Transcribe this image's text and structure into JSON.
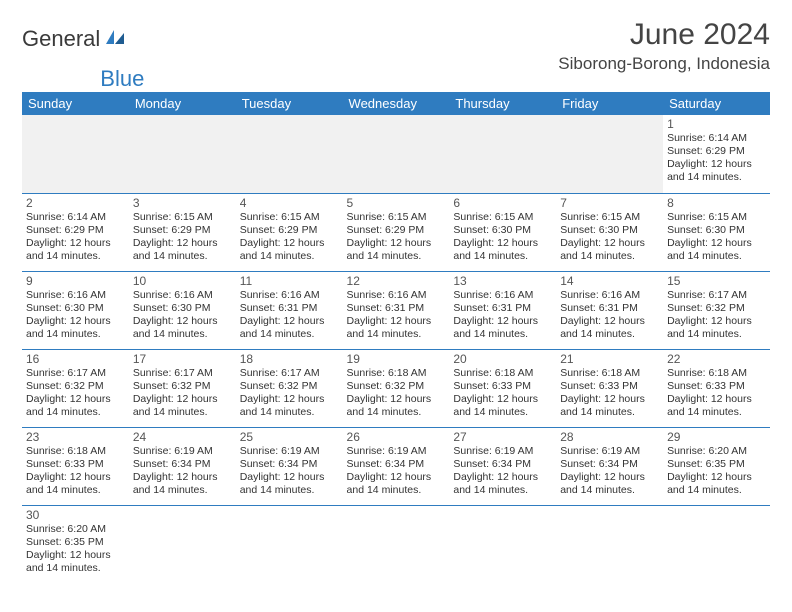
{
  "brand": {
    "part1": "General",
    "part2": "Blue"
  },
  "title": "June 2024",
  "location": "Siborong-Borong, Indonesia",
  "colors": {
    "header_bg": "#2f7cc0",
    "header_text": "#ffffff",
    "row_divider": "#2f7cc0",
    "blank_bg": "#f1f1f1",
    "text": "#333333"
  },
  "weekdays": [
    "Sunday",
    "Monday",
    "Tuesday",
    "Wednesday",
    "Thursday",
    "Friday",
    "Saturday"
  ],
  "daylight_text": "Daylight: 12 hours and 14 minutes.",
  "days": {
    "1": {
      "sunrise": "6:14 AM",
      "sunset": "6:29 PM"
    },
    "2": {
      "sunrise": "6:14 AM",
      "sunset": "6:29 PM"
    },
    "3": {
      "sunrise": "6:15 AM",
      "sunset": "6:29 PM"
    },
    "4": {
      "sunrise": "6:15 AM",
      "sunset": "6:29 PM"
    },
    "5": {
      "sunrise": "6:15 AM",
      "sunset": "6:29 PM"
    },
    "6": {
      "sunrise": "6:15 AM",
      "sunset": "6:30 PM"
    },
    "7": {
      "sunrise": "6:15 AM",
      "sunset": "6:30 PM"
    },
    "8": {
      "sunrise": "6:15 AM",
      "sunset": "6:30 PM"
    },
    "9": {
      "sunrise": "6:16 AM",
      "sunset": "6:30 PM"
    },
    "10": {
      "sunrise": "6:16 AM",
      "sunset": "6:30 PM"
    },
    "11": {
      "sunrise": "6:16 AM",
      "sunset": "6:31 PM"
    },
    "12": {
      "sunrise": "6:16 AM",
      "sunset": "6:31 PM"
    },
    "13": {
      "sunrise": "6:16 AM",
      "sunset": "6:31 PM"
    },
    "14": {
      "sunrise": "6:16 AM",
      "sunset": "6:31 PM"
    },
    "15": {
      "sunrise": "6:17 AM",
      "sunset": "6:32 PM"
    },
    "16": {
      "sunrise": "6:17 AM",
      "sunset": "6:32 PM"
    },
    "17": {
      "sunrise": "6:17 AM",
      "sunset": "6:32 PM"
    },
    "18": {
      "sunrise": "6:17 AM",
      "sunset": "6:32 PM"
    },
    "19": {
      "sunrise": "6:18 AM",
      "sunset": "6:32 PM"
    },
    "20": {
      "sunrise": "6:18 AM",
      "sunset": "6:33 PM"
    },
    "21": {
      "sunrise": "6:18 AM",
      "sunset": "6:33 PM"
    },
    "22": {
      "sunrise": "6:18 AM",
      "sunset": "6:33 PM"
    },
    "23": {
      "sunrise": "6:18 AM",
      "sunset": "6:33 PM"
    },
    "24": {
      "sunrise": "6:19 AM",
      "sunset": "6:34 PM"
    },
    "25": {
      "sunrise": "6:19 AM",
      "sunset": "6:34 PM"
    },
    "26": {
      "sunrise": "6:19 AM",
      "sunset": "6:34 PM"
    },
    "27": {
      "sunrise": "6:19 AM",
      "sunset": "6:34 PM"
    },
    "28": {
      "sunrise": "6:19 AM",
      "sunset": "6:34 PM"
    },
    "29": {
      "sunrise": "6:20 AM",
      "sunset": "6:35 PM"
    },
    "30": {
      "sunrise": "6:20 AM",
      "sunset": "6:35 PM"
    }
  },
  "layout": {
    "first_weekday_index": 6,
    "num_days": 30
  }
}
